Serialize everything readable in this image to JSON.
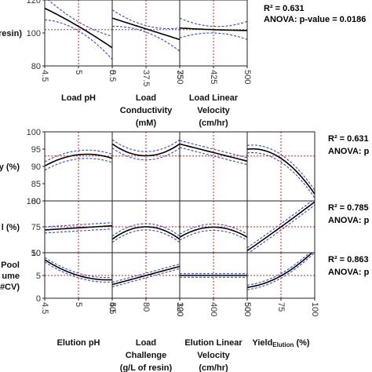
{
  "chart_data": [
    {
      "type": "line",
      "name": "load-conditions-profiler",
      "stats": {
        "r2": "R² = 0.631",
        "anova": "ANOVA: p-value = 0.0186"
      },
      "rows": [
        {
          "ylabel": "resin)",
          "ylim": [
            80,
            120
          ],
          "yticks": [
            80,
            100,
            120
          ],
          "ref_y": 102,
          "factors": [
            {
              "label": [
                "Load pH"
              ],
              "xlim": [
                4.5,
                5.5
              ],
              "xticks": [
                "4.5",
                "5",
                "5.5"
              ],
              "tickvals": [
                4.5,
                5,
                5.5
              ],
              "ref_x": 5,
              "x": [
                4.5,
                5,
                5.5
              ],
              "y": [
                115,
                104,
                91
              ],
              "lo": [
                108,
                101.5,
                84
              ],
              "hi": [
                122,
                107,
                98
              ]
            },
            {
              "label": [
                "Load",
                "Conductivity",
                "(mM)"
              ],
              "xlim": [
                0,
                75
              ],
              "xticks": [
                "0",
                "37.5",
                "75"
              ],
              "tickvals": [
                0,
                37.5,
                75
              ],
              "ref_x": 37.5,
              "x": [
                0,
                37.5,
                75
              ],
              "y": [
                109,
                102.5,
                96
              ],
              "lo": [
                104,
                100.5,
                89
              ],
              "hi": [
                114,
                104.5,
                103
              ]
            },
            {
              "label": [
                "Load Linear",
                "Velocity",
                "(cm/hr)"
              ],
              "xlim": [
                350,
                500
              ],
              "xticks": [
                "350",
                "425",
                "500"
              ],
              "tickvals": [
                350,
                425,
                500
              ],
              "ref_x": 425,
              "x": [
                350,
                425,
                500
              ],
              "y": [
                103,
                102,
                101.5
              ],
              "lo": [
                97,
                100,
                96
              ],
              "hi": [
                109,
                104,
                107
              ]
            }
          ]
        }
      ]
    },
    {
      "type": "line",
      "name": "elution-conditions-profiler",
      "factor_labels": [
        [
          "Elution pH"
        ],
        [
          "Load",
          "Challenge",
          "(g/L of resin)"
        ],
        [
          "Elution Linear",
          "Velocity",
          "(cm/hr)"
        ],
        [
          "Yield",
          "Elution",
          " (%)"
        ]
      ],
      "factor_ticks": [
        {
          "xlim": [
            4.5,
            5.5
          ],
          "xticks": [
            "4.5",
            "5",
            "5.5"
          ],
          "tickvals": [
            4.5,
            5,
            5.5
          ],
          "ref_x": 5
        },
        {
          "xlim": [
            40,
            120
          ],
          "xticks": [
            "40",
            "80",
            "120"
          ],
          "tickvals": [
            40,
            80,
            120
          ],
          "ref_x": 80
        },
        {
          "xlim": [
            300,
            500
          ],
          "xticks": [
            "300",
            "400",
            "500"
          ],
          "tickvals": [
            300,
            400,
            500
          ],
          "ref_x": 400
        },
        {
          "xlim": [
            50,
            100
          ],
          "xticks": [
            "50",
            "75",
            "100"
          ],
          "tickvals": [
            50,
            75,
            100
          ],
          "ref_x": 75
        }
      ],
      "rows": [
        {
          "ylabel": [
            "y (%)"
          ],
          "ylim": [
            80,
            100
          ],
          "yticks": [
            80,
            85,
            90,
            95,
            100
          ],
          "ref_y": 93,
          "stats": {
            "r2": "R² = 0.631",
            "anova": "ANOVA: p"
          },
          "curves": [
            {
              "y": [
                90,
                92.5,
                93.5,
                93,
                92.5
              ],
              "band": 1.2
            },
            {
              "y": [
                96.5,
                94,
                93,
                94,
                96.5
              ],
              "band": 1.2
            },
            {
              "y": [
                96.5,
                95.2,
                94,
                92.8,
                91.5
              ],
              "band": 1.0
            },
            {
              "y": [
                95,
                94.5,
                92.5,
                88,
                82
              ],
              "band": 1.1
            }
          ]
        },
        {
          "ylabel": [
            "l (%)"
          ],
          "ylim": [
            50,
            100
          ],
          "yticks": [
            50,
            75,
            100
          ],
          "ref_y": 75,
          "stats": {
            "r2": "R² = 0.785",
            "anova": "ANOVA: p"
          },
          "curves": [
            {
              "y": [
                72,
                73,
                74,
                75,
                76
              ],
              "band": 3
            },
            {
              "y": [
                63,
                72,
                75,
                72,
                63
              ],
              "band": 3
            },
            {
              "y": [
                65,
                72,
                75,
                72,
                65
              ],
              "band": 3
            },
            {
              "y": [
                52,
                63,
                75,
                87,
                99
              ],
              "band": 3
            }
          ]
        },
        {
          "ylabel": [
            "Pool",
            "ume",
            "#CV)"
          ],
          "ylim": [
            0,
            10
          ],
          "yticks": [
            0,
            5,
            10
          ],
          "ref_y": 5,
          "stats": {
            "r2": "R² = 0.863",
            "anova": "ANOVA: p"
          },
          "curves": [
            {
              "y": [
                8.5,
                6.3,
                5,
                4.3,
                4
              ],
              "band": 0.5
            },
            {
              "y": [
                3,
                4,
                5,
                6,
                7
              ],
              "band": 0.5
            },
            {
              "y": [
                5,
                5,
                5,
                5,
                5
              ],
              "band": 0.4
            },
            {
              "y": [
                2.5,
                3,
                5,
                7.5,
                10.5
              ],
              "band": 0.5
            }
          ]
        }
      ]
    }
  ],
  "colors": {
    "mean": "#000000",
    "ci": "#3344dd",
    "ref": "#dd2222",
    "frame": "#222222"
  }
}
